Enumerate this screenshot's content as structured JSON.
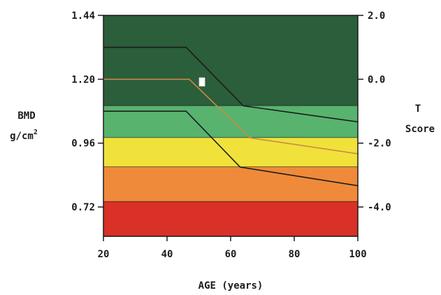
{
  "chart_data": {
    "type": "area",
    "xlabel": "AGE (years)",
    "ylabel_line1": "BMD",
    "ylabel_line2": "g/cm",
    "ylabel_sup": "2",
    "y2label_line1": "T",
    "y2label_line2": "Score",
    "xlim": [
      20,
      100
    ],
    "ylim": [
      0.61,
      1.44
    ],
    "x_ticks": [
      {
        "value": 20,
        "label": "20"
      },
      {
        "value": 40,
        "label": "40"
      },
      {
        "value": 60,
        "label": "60"
      },
      {
        "value": 80,
        "label": "80"
      },
      {
        "value": 100,
        "label": "100"
      }
    ],
    "y_ticks": [
      {
        "value": 1.44,
        "label": "1.44"
      },
      {
        "value": 1.2,
        "label": "1.20"
      },
      {
        "value": 0.96,
        "label": "0.96"
      },
      {
        "value": 0.72,
        "label": "0.72"
      }
    ],
    "y2_ticks": [
      {
        "value": 1.44,
        "label": "2.0"
      },
      {
        "value": 1.2,
        "label": "0.0"
      },
      {
        "value": 0.96,
        "label": "-2.0"
      },
      {
        "value": 0.72,
        "label": "-4.0"
      }
    ],
    "bands": [
      {
        "name": "dark-green",
        "y_range": [
          1.1,
          1.44
        ],
        "color": "#2b5e3a"
      },
      {
        "name": "green",
        "y_range": [
          0.98,
          1.1
        ],
        "color": "#58b36e"
      },
      {
        "name": "yellow",
        "y_range": [
          0.87,
          0.98
        ],
        "color": "#f0e23a"
      },
      {
        "name": "orange",
        "y_range": [
          0.74,
          0.87
        ],
        "color": "#ef8a3a"
      },
      {
        "name": "red",
        "y_range": [
          0.61,
          0.74
        ],
        "color": "#d93027"
      }
    ],
    "reference_lines": [
      {
        "name": "upper-curve",
        "color": "#1c1c1c",
        "points": [
          [
            20,
            1.32
          ],
          [
            46,
            1.32
          ],
          [
            64,
            1.1
          ],
          [
            100,
            1.04
          ]
        ]
      },
      {
        "name": "lower-curve",
        "color": "#1c1c1c",
        "points": [
          [
            20,
            1.08
          ],
          [
            46,
            1.08
          ],
          [
            63,
            0.87
          ],
          [
            100,
            0.8
          ]
        ]
      },
      {
        "name": "mean-curve",
        "color": "#c98a4a",
        "points": [
          [
            20,
            1.2
          ],
          [
            47,
            1.2
          ],
          [
            66,
            0.98
          ],
          [
            100,
            0.92
          ]
        ]
      }
    ],
    "patient_point": {
      "x": 51,
      "y": 1.19,
      "color": "#ffffff"
    },
    "grid": false,
    "legend": "none"
  }
}
